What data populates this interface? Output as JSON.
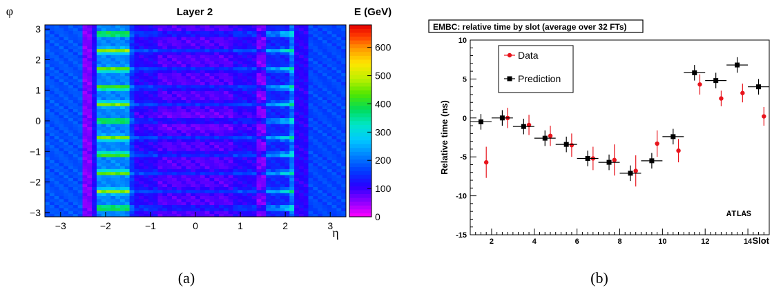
{
  "panel_labels": [
    "(a)",
    "(b)"
  ],
  "chart_data": [
    {
      "type": "heatmap",
      "title": "Layer 2",
      "colorbar_label": "E (GeV)",
      "xlabel": "η",
      "ylabel": "φ",
      "xlim": [
        -3.35,
        3.35
      ],
      "ylim": [
        -3.14,
        3.14
      ],
      "x_ticks": [
        -3,
        -2,
        -1,
        0,
        1,
        2,
        3
      ],
      "y_ticks": [
        -3,
        -2,
        -1,
        0,
        1,
        2,
        3
      ],
      "z_range": [
        0,
        680
      ],
      "colorbar_ticks": [
        0,
        100,
        200,
        300,
        400,
        500,
        600
      ],
      "eta_profile": [
        {
          "eta_max": -2.5,
          "energy": 180
        },
        {
          "eta_max": -2.35,
          "energy": 60
        },
        {
          "eta_max": -2.15,
          "energy": 120
        },
        {
          "eta_max": -1.5,
          "energy": 220
        },
        {
          "eta_max": -1.35,
          "energy": 150
        },
        {
          "eta_max": -0.8,
          "energy": 110
        },
        {
          "eta_max": 0.0,
          "energy": 85
        },
        {
          "eta_max": 0.8,
          "energy": 85
        },
        {
          "eta_max": 1.4,
          "energy": 110
        },
        {
          "eta_max": 1.55,
          "energy": 60
        },
        {
          "eta_max": 2.05,
          "energy": 140
        },
        {
          "eta_max": 2.2,
          "energy": 200
        },
        {
          "eta_max": 2.5,
          "energy": 110
        },
        {
          "eta_max": 3.35,
          "energy": 170
        }
      ],
      "hot_rows_phi": [
        -2.85,
        -2.3,
        -1.7,
        -1.1,
        -0.55,
        0.0,
        0.55,
        1.1,
        1.7,
        2.3,
        2.85
      ]
    },
    {
      "type": "scatter",
      "title": "EMBC: relative time by slot (average over 32 FTs)",
      "xlabel": "Slot",
      "ylabel": "Relative time (ns)",
      "xlim": [
        1,
        15
      ],
      "ylim": [
        -15,
        10
      ],
      "x_ticks": [
        2,
        4,
        6,
        8,
        10,
        12,
        14
      ],
      "y_ticks": [
        -15,
        -10,
        -5,
        0,
        5,
        10
      ],
      "annotation": "ATLAS",
      "series": [
        {
          "name": "Data",
          "color": "#e8141c",
          "marker": "circle",
          "x": [
            1.75,
            2.75,
            3.75,
            4.75,
            5.75,
            6.75,
            7.75,
            8.75,
            9.75,
            10.75,
            11.75,
            12.75,
            13.75,
            14.75
          ],
          "y": [
            -5.7,
            0.0,
            -0.9,
            -2.3,
            -3.5,
            -5.2,
            -5.4,
            -6.8,
            -3.3,
            -4.2,
            4.3,
            2.5,
            3.2,
            0.2
          ],
          "err": [
            2.0,
            1.3,
            1.3,
            1.3,
            1.5,
            1.5,
            2.0,
            2.0,
            1.7,
            1.5,
            1.3,
            1.0,
            1.2,
            1.2
          ]
        },
        {
          "name": "Prediction",
          "color": "#000000",
          "marker": "square",
          "x": [
            1.5,
            2.5,
            3.5,
            4.5,
            5.5,
            6.5,
            7.5,
            8.5,
            9.5,
            10.5,
            11.5,
            12.5,
            13.5,
            14.5
          ],
          "y": [
            -0.5,
            0.0,
            -1.1,
            -2.6,
            -3.4,
            -5.2,
            -5.7,
            -7.1,
            -5.5,
            -2.4,
            5.8,
            4.8,
            6.8,
            4.0
          ],
          "xerr": 0.5,
          "err": [
            1.0,
            1.0,
            1.0,
            1.0,
            1.0,
            1.0,
            1.0,
            1.0,
            1.0,
            1.0,
            1.0,
            1.0,
            1.0,
            1.0
          ]
        }
      ]
    }
  ]
}
